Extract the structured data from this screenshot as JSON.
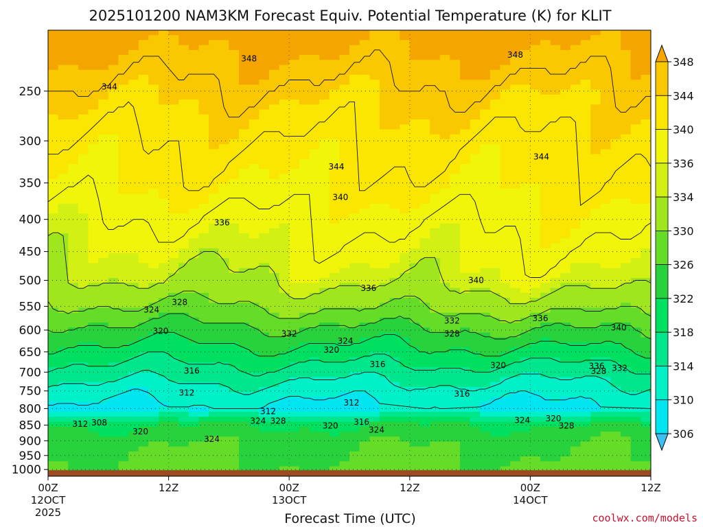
{
  "chart_data": {
    "type": "heatmap",
    "title": "2025101200 NAM3KM Forecast Equiv. Potential Temperature (K) for KLIT",
    "xlabel": "Forecast Time (UTC)",
    "ylabel": "",
    "x_tick_labels": [
      {
        "hour": 0,
        "label": "00Z",
        "date": "12OCT",
        "year": "2025"
      },
      {
        "hour": 12,
        "label": "12Z",
        "date": "",
        "year": ""
      },
      {
        "hour": 24,
        "label": "00Z",
        "date": "13OCT",
        "year": ""
      },
      {
        "hour": 36,
        "label": "12Z",
        "date": "",
        "year": ""
      },
      {
        "hour": 48,
        "label": "00Z",
        "date": "14OCT",
        "year": ""
      },
      {
        "hour": 60,
        "label": "12Z",
        "date": "",
        "year": ""
      }
    ],
    "xlim": [
      0,
      60
    ],
    "y_ticks": [
      250,
      300,
      350,
      400,
      450,
      500,
      550,
      600,
      650,
      700,
      750,
      800,
      850,
      900,
      950,
      1000
    ],
    "ylim": [
      1025,
      200
    ],
    "y_scale": "log-pressure",
    "colorbar": {
      "levels": [
        306,
        310,
        314,
        318,
        322,
        326,
        330,
        334,
        336,
        340,
        344,
        348
      ],
      "extend": "both",
      "colors": [
        "#3fc0f0",
        "#00e6f0",
        "#00f0c8",
        "#00e68c",
        "#00e060",
        "#28d23c",
        "#64dc28",
        "#a0e61e",
        "#d2f014",
        "#f0f50a",
        "#fae600",
        "#fac800",
        "#f5a500"
      ]
    },
    "ground_color": "#9c4a22",
    "contour_labels": [
      {
        "value": "348",
        "hour": 20,
        "p": 222
      },
      {
        "value": "348",
        "hour": 46.5,
        "p": 219
      },
      {
        "value": "344",
        "hour": 6.1,
        "p": 246
      },
      {
        "value": "344",
        "hour": 28.7,
        "p": 330
      },
      {
        "value": "344",
        "hour": 49.1,
        "p": 318
      },
      {
        "value": "340",
        "hour": 29.1,
        "p": 369
      },
      {
        "value": "336",
        "hour": 17.3,
        "p": 405
      },
      {
        "value": "336",
        "hour": 31.9,
        "p": 515
      },
      {
        "value": "340",
        "hour": 42.6,
        "p": 500
      },
      {
        "value": "336",
        "hour": 49,
        "p": 575
      },
      {
        "value": "340",
        "hour": 56.8,
        "p": 595
      },
      {
        "value": "332",
        "hour": 40.2,
        "p": 580
      },
      {
        "value": "328",
        "hour": 40.2,
        "p": 608
      },
      {
        "value": "328",
        "hour": 13.1,
        "p": 542
      },
      {
        "value": "324",
        "hour": 10.3,
        "p": 557
      },
      {
        "value": "320",
        "hour": 11.2,
        "p": 602
      },
      {
        "value": "332",
        "hour": 24,
        "p": 608
      },
      {
        "value": "324",
        "hour": 29.6,
        "p": 625
      },
      {
        "value": "320",
        "hour": 28.2,
        "p": 645
      },
      {
        "value": "316",
        "hour": 32.8,
        "p": 680
      },
      {
        "value": "316",
        "hour": 14.3,
        "p": 697
      },
      {
        "value": "320",
        "hour": 44.8,
        "p": 683
      },
      {
        "value": "336",
        "hour": 54.6,
        "p": 685
      },
      {
        "value": "332",
        "hour": 56.9,
        "p": 690
      },
      {
        "value": "328",
        "hour": 54.8,
        "p": 698
      },
      {
        "value": "312",
        "hour": 13.8,
        "p": 755
      },
      {
        "value": "316",
        "hour": 41.2,
        "p": 758
      },
      {
        "value": "312",
        "hour": 30.2,
        "p": 783
      },
      {
        "value": "312",
        "hour": 21.9,
        "p": 808
      },
      {
        "value": "324",
        "hour": 20.9,
        "p": 837
      },
      {
        "value": "328",
        "hour": 22.9,
        "p": 837
      },
      {
        "value": "312",
        "hour": 3.2,
        "p": 847
      },
      {
        "value": "308",
        "hour": 5.1,
        "p": 843
      },
      {
        "value": "320",
        "hour": 9.2,
        "p": 870
      },
      {
        "value": "316",
        "hour": 31.2,
        "p": 840
      },
      {
        "value": "320",
        "hour": 28.1,
        "p": 852
      },
      {
        "value": "324",
        "hour": 32.7,
        "p": 865
      },
      {
        "value": "324",
        "hour": 47.2,
        "p": 835
      },
      {
        "value": "320",
        "hour": 50.3,
        "p": 830
      },
      {
        "value": "328",
        "hour": 51.6,
        "p": 852
      },
      {
        "value": "324",
        "hour": 16.3,
        "p": 895
      }
    ],
    "field_profile_by_pressure": [
      {
        "p": 200,
        "theta_e": 350
      },
      {
        "p": 250,
        "theta_e": 345
      },
      {
        "p": 300,
        "theta_e": 342
      },
      {
        "p": 350,
        "theta_e": 340
      },
      {
        "p": 400,
        "theta_e": 337
      },
      {
        "p": 450,
        "theta_e": 335
      },
      {
        "p": 500,
        "theta_e": 333
      },
      {
        "p": 550,
        "theta_e": 329
      },
      {
        "p": 600,
        "theta_e": 324
      },
      {
        "p": 650,
        "theta_e": 320
      },
      {
        "p": 700,
        "theta_e": 316
      },
      {
        "p": 750,
        "theta_e": 312
      },
      {
        "p": 800,
        "theta_e": 309
      },
      {
        "p": 850,
        "theta_e": 322
      },
      {
        "p": 900,
        "theta_e": 325
      },
      {
        "p": 950,
        "theta_e": 326
      },
      {
        "p": 1000,
        "theta_e": 327
      }
    ]
  },
  "credit": "coolwx.com/models"
}
